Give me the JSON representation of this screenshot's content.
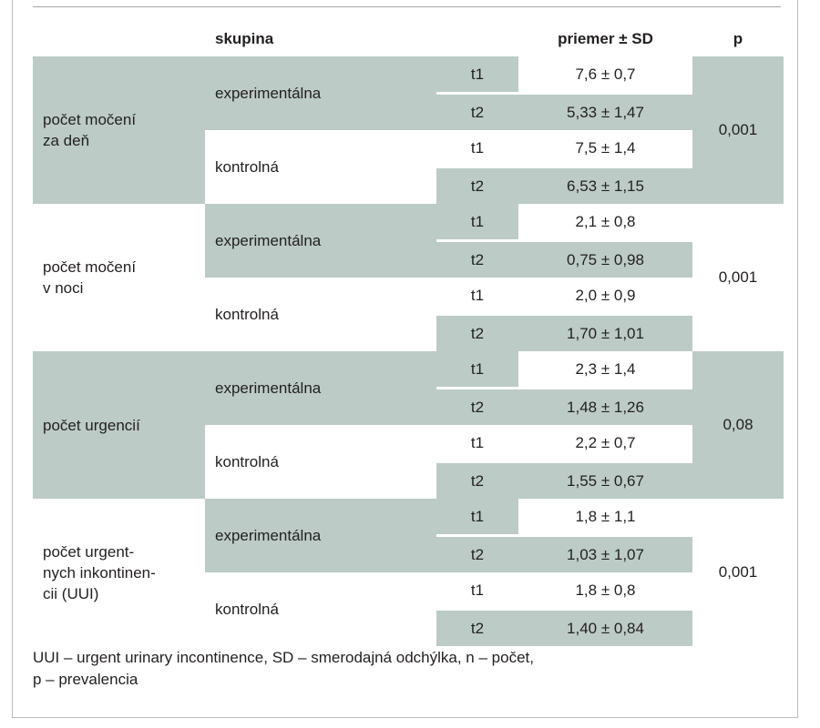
{
  "header": {
    "group": "skupina",
    "mean": "priemer ± SD",
    "p": "p"
  },
  "rows": [
    {
      "measure": [
        "počet močení",
        "za deň"
      ],
      "p": "0,001",
      "groups": [
        {
          "name": "experimentálna",
          "t1": "t1",
          "v1": "7,6 ± 0,7",
          "t2": "t2",
          "v2": "5,33 ± 1,47"
        },
        {
          "name": "kontrolná",
          "t1": "t1",
          "v1": "7,5 ± 1,4",
          "t2": "t2",
          "v2": "6,53 ± 1,15"
        }
      ]
    },
    {
      "measure": [
        "počet močení",
        "v noci"
      ],
      "p": "0,001",
      "groups": [
        {
          "name": "experimentálna",
          "t1": "t1",
          "v1": "2,1 ± 0,8",
          "t2": "t2",
          "v2": "0,75 ± 0,98"
        },
        {
          "name": "kontrolná",
          "t1": "t1",
          "v1": "2,0 ± 0,9",
          "t2": "t2",
          "v2": "1,70 ± 1,01"
        }
      ]
    },
    {
      "measure": [
        "počet urgencií"
      ],
      "p": "0,08",
      "groups": [
        {
          "name": "experimentálna",
          "t1": "t1",
          "v1": "2,3 ± 1,4",
          "t2": "t2",
          "v2": "1,48 ± 1,26"
        },
        {
          "name": "kontrolná",
          "t1": "t1",
          "v1": "2,2 ± 0,7",
          "t2": "t2",
          "v2": "1,55 ± 0,67"
        }
      ]
    },
    {
      "measure": [
        "počet urgent-",
        "nych inkontinen-",
        "cii (UUI)"
      ],
      "p": "0,001",
      "groups": [
        {
          "name": "experimentálna",
          "t1": "t1",
          "v1": "1,8 ± 1,1",
          "t2": "t2",
          "v2": "1,03 ± 1,07"
        },
        {
          "name": "kontrolná",
          "t1": "t1",
          "v1": "1,8 ± 0,8",
          "t2": "t2",
          "v2": "1,40 ± 0,84"
        }
      ]
    }
  ],
  "footnote": {
    "line1": "UUI – urgent urinary incontinence, SD – smerodajná odchýlka, n – počet,",
    "line2": "p – prevalencia"
  }
}
